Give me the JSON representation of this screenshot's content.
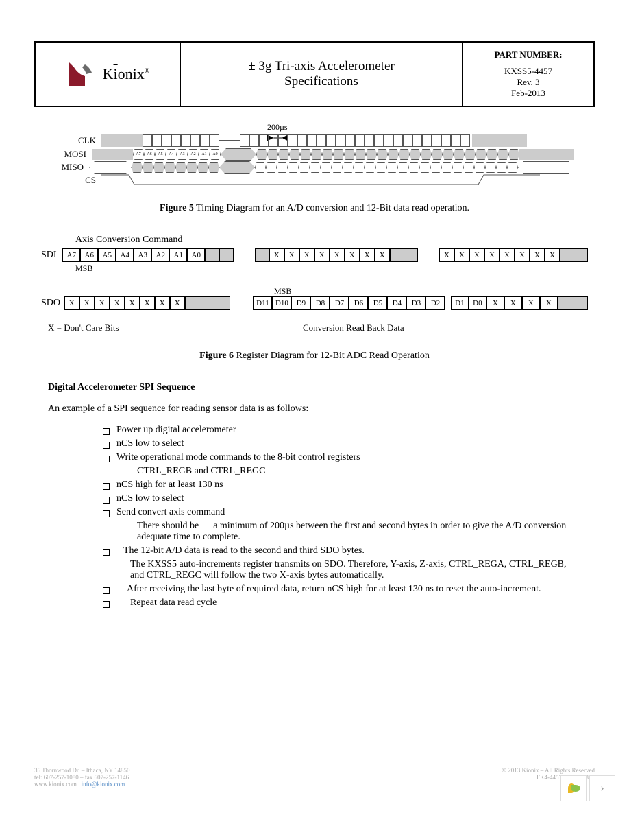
{
  "header": {
    "logo_text": "Kionix",
    "logo_r": "®",
    "title_line1": "± 3g Tri-axis Accelerometer",
    "title_line2": "Specifications",
    "pn_label": "PART NUMBER:",
    "pn_value": "KXSS5-4457",
    "rev": "Rev. 3",
    "date": "Feb-2013",
    "logo_colors": {
      "red": "#8b1a2b",
      "grey": "#6b6b6b"
    }
  },
  "timing": {
    "measure": "200µs",
    "signals": [
      "CLK",
      "MOSI",
      "MISO",
      "CS"
    ],
    "mosi_bits": [
      "A7",
      "A6",
      "A5",
      "A4",
      "A3",
      "A2",
      "A1",
      "A0"
    ],
    "fig5_label": "Figure 5",
    "fig5_text": " Timing Diagram for an A/D conversion and 12-Bit data read operation."
  },
  "reg": {
    "axis_cmd": "Axis Conversion Command",
    "sdi": "SDI",
    "sdo": "SDO",
    "msb": "MSB",
    "sdi_bits": [
      "A7",
      "A6",
      "A5",
      "A4",
      "A3",
      "A2",
      "A1",
      "A0"
    ],
    "x_bits": [
      "X",
      "X",
      "X",
      "X",
      "X",
      "X",
      "X",
      "X"
    ],
    "sdo_bits": [
      "D11",
      "D10",
      "D9",
      "D8",
      "D7",
      "D6",
      "D5",
      "D4",
      "D3",
      "D2"
    ],
    "sdo_bits2": [
      "D1",
      "D0",
      "X",
      "X",
      "X",
      "X"
    ],
    "readback": "Conversion Read Back Data",
    "dontcare": "X = Don't Care Bits",
    "fig6_label": "Figure 6",
    "fig6_text": " Register Diagram for 12-Bit ADC Read Operation"
  },
  "seq": {
    "title": "Digital Accelerometer SPI Sequence",
    "intro": "An example of a SPI sequence for reading sensor data is as follows:",
    "items": [
      "Power up digital accelerometer",
      "nCS low to select",
      "Write operational mode commands to the 8-bit control registers"
    ],
    "sub1": "CTRL_REGB and CTRL_REGC",
    "items2": [
      "nCS high for at least 130 ns",
      "nCS low to select",
      "Send convert axis command"
    ],
    "sub2a": "There should be",
    "sub2b": "a minimum of 200µs between the first and second bytes in order to give the A/D conversion adequate time to complete.",
    "item3": "The 12-bit A/D data is read to the second and third SDO bytes.",
    "sub3": "The KXSS5 auto-increments register transmits on SDO.  Therefore, Y-axis, Z-axis, CTRL_REGA, CTRL_REGB, and CTRL_REGC will follow the two X-axis bytes automatically.",
    "item4": "After receiving the last byte of required data, return nCS high for at least 130 ns to reset the auto-increment.",
    "item5": "Repeat data read cycle"
  },
  "footer": {
    "addr": "36 Thornwood Dr. – Ithaca, NY 14850",
    "tel": "tel: 607-257-1080 – fax 607-257-1146",
    "web": "www.kionix.com",
    "email": "info@kionix.com",
    "copy": "© 2013 Kionix – All Rights Reserved",
    "doc": "FK4-4457-1302271336",
    "page": "Page 18 of 31"
  },
  "colors": {
    "grey": "#cccccc",
    "border": "#555555"
  }
}
